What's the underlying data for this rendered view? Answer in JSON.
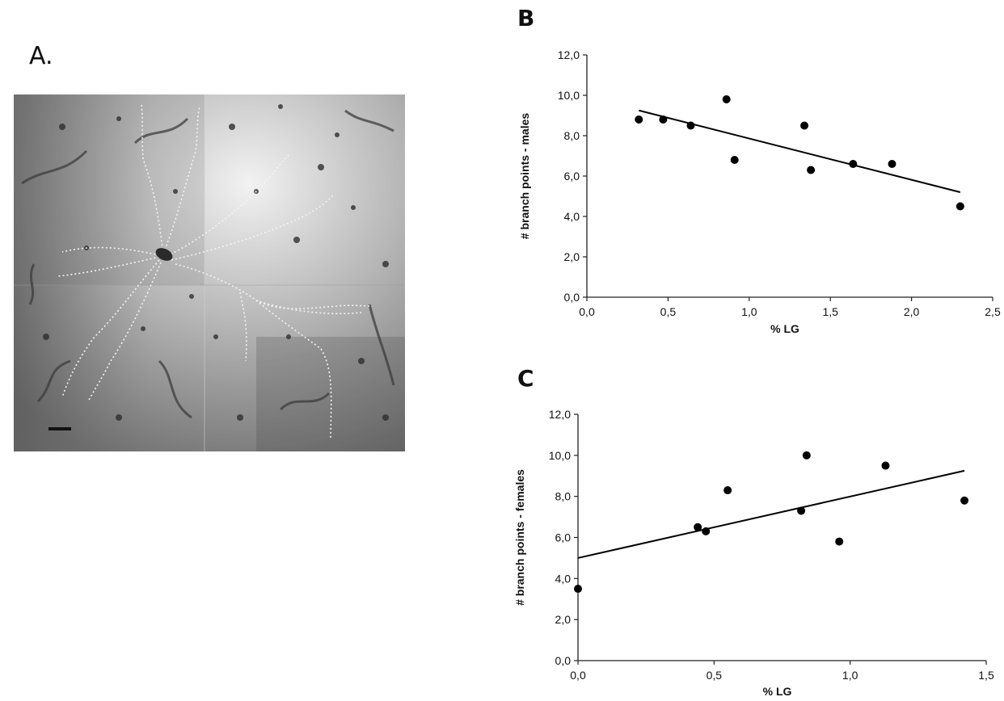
{
  "panels": {
    "a_label": "A.",
    "b_label": "B",
    "c_label": "C"
  },
  "micrograph": {
    "description_icon": "neuron-micrograph-icon",
    "colors": {
      "background_light": "#e4e4e4",
      "background_dark": "#6e6e6e",
      "tracing": "#f2f2f2",
      "cell": "#2a2a2a"
    }
  },
  "chart_data": [
    {
      "type": "scatter",
      "panel": "B",
      "title": "",
      "xlabel": "% LG",
      "ylabel": "# branch points - males",
      "xlim": [
        0,
        2.5
      ],
      "ylim": [
        0,
        12
      ],
      "xticks": [
        "0,0",
        "0,5",
        "1,0",
        "1,5",
        "2,0",
        "2,5"
      ],
      "yticks": [
        "0,0",
        "2,0",
        "4,0",
        "6,0",
        "8,0",
        "10,0",
        "12,0"
      ],
      "points": [
        {
          "x": 0.32,
          "y": 8.8
        },
        {
          "x": 0.47,
          "y": 8.8
        },
        {
          "x": 0.64,
          "y": 8.5
        },
        {
          "x": 0.86,
          "y": 9.8
        },
        {
          "x": 0.91,
          "y": 6.8
        },
        {
          "x": 1.34,
          "y": 8.5
        },
        {
          "x": 1.38,
          "y": 6.3
        },
        {
          "x": 1.64,
          "y": 6.6
        },
        {
          "x": 1.88,
          "y": 6.6
        },
        {
          "x": 2.3,
          "y": 4.5
        }
      ],
      "trendline": {
        "x": [
          0.32,
          2.3
        ],
        "y": [
          9.25,
          5.2
        ]
      },
      "grid": false,
      "legend": "none",
      "colors": {
        "marker": "#000000",
        "line": "#000000",
        "axis": "#222222"
      }
    },
    {
      "type": "scatter",
      "panel": "C",
      "title": "",
      "xlabel": "% LG",
      "ylabel": "# branch points - females",
      "xlim": [
        0,
        1.5
      ],
      "ylim": [
        0,
        12
      ],
      "xticks": [
        "0,0",
        "0,5",
        "1,0",
        "1,5"
      ],
      "yticks": [
        "0,0",
        "2,0",
        "4,0",
        "6,0",
        "8,0",
        "10,0",
        "12,0"
      ],
      "points": [
        {
          "x": 0.0,
          "y": 3.5
        },
        {
          "x": 0.44,
          "y": 6.5
        },
        {
          "x": 0.47,
          "y": 6.3
        },
        {
          "x": 0.55,
          "y": 8.3
        },
        {
          "x": 0.82,
          "y": 7.3
        },
        {
          "x": 0.84,
          "y": 10.0
        },
        {
          "x": 0.96,
          "y": 5.8
        },
        {
          "x": 1.13,
          "y": 9.5
        },
        {
          "x": 1.42,
          "y": 7.8
        }
      ],
      "trendline": {
        "x": [
          0.0,
          1.42
        ],
        "y": [
          5.0,
          9.25
        ]
      },
      "grid": false,
      "legend": "none",
      "colors": {
        "marker": "#000000",
        "line": "#000000",
        "axis": "#222222"
      }
    }
  ]
}
